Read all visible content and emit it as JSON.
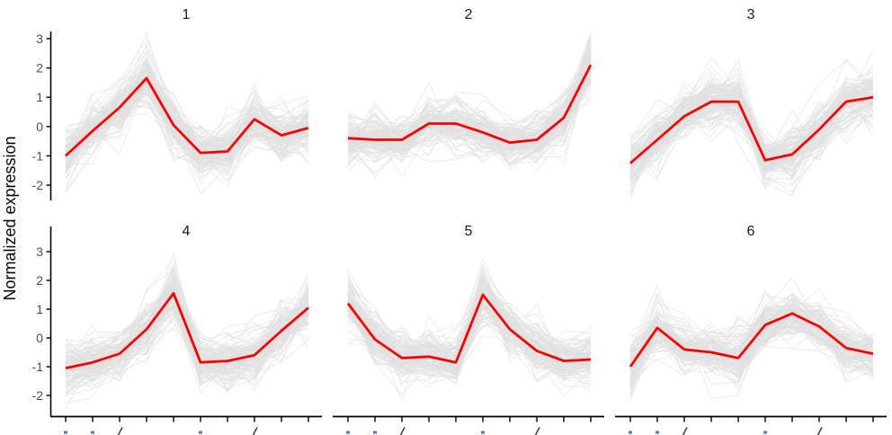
{
  "chart_data": {
    "type": "line",
    "title": "",
    "ylabel": "Normalized expression",
    "xlabel": "",
    "y_ticks": [
      "3",
      "2",
      "1",
      "0",
      "-1",
      "-2"
    ],
    "y_tick_values": [
      3,
      2,
      1,
      0,
      -1,
      -2
    ],
    "ylim": [
      -2.5,
      3.25
    ],
    "grid": false,
    "legend": null,
    "x_tick_count": 10,
    "x_axis_labels_cutoff": true,
    "x_label_stubs": {
      "tick_indices": [
        0,
        1,
        2,
        5,
        7
      ],
      "types": [
        "dot",
        "dot",
        "slash",
        "dot",
        "slash"
      ]
    },
    "facets": [
      {
        "label": "1",
        "values": [
          -1.0,
          -0.15,
          0.65,
          1.65,
          0.05,
          -0.9,
          -0.85,
          0.25,
          -0.3,
          -0.05
        ]
      },
      {
        "label": "2",
        "values": [
          -0.4,
          -0.45,
          -0.45,
          0.1,
          0.1,
          -0.2,
          -0.55,
          -0.45,
          0.3,
          2.1
        ]
      },
      {
        "label": "3",
        "values": [
          -1.25,
          -0.45,
          0.35,
          0.85,
          0.85,
          -1.15,
          -0.95,
          -0.1,
          0.85,
          1.0
        ]
      },
      {
        "label": "4",
        "values": [
          -1.05,
          -0.85,
          -0.55,
          0.3,
          1.55,
          -0.85,
          -0.8,
          -0.6,
          0.25,
          1.05
        ]
      },
      {
        "label": "5",
        "values": [
          1.2,
          -0.05,
          -0.7,
          -0.65,
          -0.85,
          1.5,
          0.3,
          -0.45,
          -0.8,
          -0.75
        ]
      },
      {
        "label": "6",
        "values": [
          -1.0,
          0.35,
          -0.4,
          -0.5,
          -0.7,
          0.45,
          0.85,
          0.4,
          -0.35,
          -0.55
        ]
      }
    ],
    "members": {
      "lines_per_facet": 110,
      "seed": 42,
      "description": "grey individual member expression profiles drawn behind the red centroid line"
    },
    "colors": {
      "centroid": "#f40000",
      "member": "#e0e0e0",
      "axis": "#000000",
      "tick_label": "#4d4d4d",
      "facet_title": "#1a1a1a",
      "stub_dot": "#5b79b2",
      "stub_slash": "#3a3a3a"
    }
  }
}
